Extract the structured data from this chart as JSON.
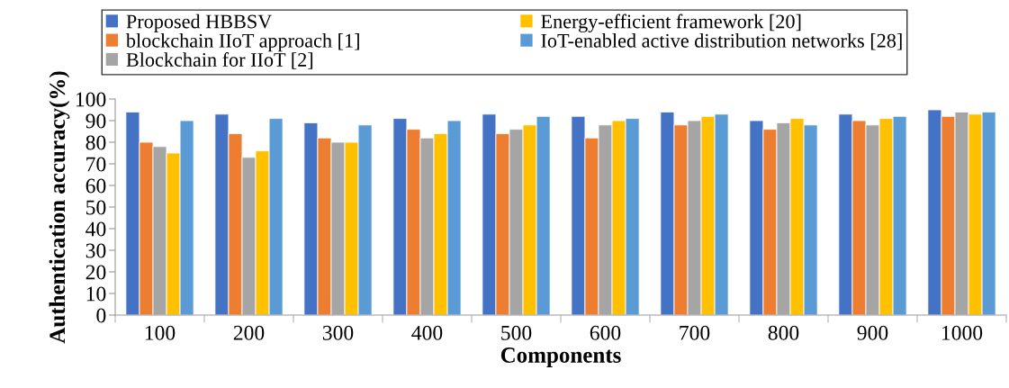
{
  "chart_data": {
    "type": "bar",
    "xlabel": "Components",
    "ylabel": "Authentication accuracy(%)",
    "categories": [
      "100",
      "200",
      "300",
      "400",
      "500",
      "600",
      "700",
      "800",
      "900",
      "1000"
    ],
    "series": [
      {
        "name": "Proposed HBBSV",
        "color": "#4472c4",
        "values": [
          94,
          93,
          89,
          91,
          93,
          92,
          94,
          90,
          93,
          95
        ]
      },
      {
        "name": "blockchain IIoT approach [1]",
        "color": "#ed7d31",
        "values": [
          80,
          84,
          82,
          86,
          84,
          82,
          88,
          86,
          90,
          92
        ]
      },
      {
        "name": "Blockchain for IIoT [2]",
        "color": "#a5a5a5",
        "values": [
          78,
          73,
          80,
          82,
          86,
          88,
          90,
          89,
          88,
          94
        ]
      },
      {
        "name": "Energy-efficient framework [20]",
        "color": "#ffc000",
        "values": [
          75,
          76,
          80,
          84,
          88,
          90,
          92,
          91,
          91,
          93
        ]
      },
      {
        "name": "IoT-enabled active distribution networks [28]",
        "color": "#5b9bd5",
        "values": [
          90,
          91,
          88,
          90,
          92,
          91,
          93,
          88,
          92,
          94
        ]
      }
    ],
    "ylim": [
      0,
      100
    ],
    "yticks": [
      0,
      10,
      20,
      30,
      40,
      50,
      60,
      70,
      80,
      90,
      100
    ],
    "grid": false,
    "legend": "top"
  }
}
